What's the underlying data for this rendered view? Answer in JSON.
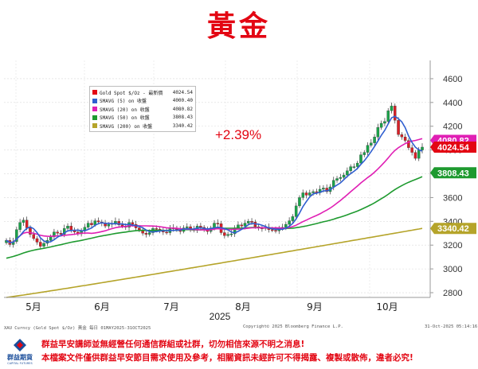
{
  "title": "黃金",
  "change_text": "+2.39%",
  "legend": [
    {
      "label": "Gold Spot $/Oz - 最新價",
      "value": "4024.54",
      "color": "#e30613"
    },
    {
      "label": "SMAVG (5)  on 收盤",
      "value": "4000.40",
      "color": "#2f5fd0"
    },
    {
      "label": "SMAVG (20)  on 收盤",
      "value": "4080.82",
      "color": "#e01fb4"
    },
    {
      "label": "SMAVG (50)  on 收盤",
      "value": "3808.43",
      "color": "#1e9a2f"
    },
    {
      "label": "SMAVG (200)  on 收盤",
      "value": "3340.42",
      "color": "#b5a42a"
    }
  ],
  "axis_badges": [
    {
      "text": "4080.82",
      "color": "#e01fb4",
      "price": 4080.82
    },
    {
      "text": "4024.54",
      "color": "#e30613",
      "price": 4024.54
    },
    {
      "text": "3808.43",
      "color": "#1e9a2f",
      "price": 3808.43
    },
    {
      "text": "3340.42",
      "color": "#b5a42a",
      "price": 3340.42
    }
  ],
  "source_left": "XAU Curncy (Gold Spot  $/Oz) 黃金 每日 01MAY2025-31OCT2025",
  "source_mid": "Copyright© 2025 Bloomberg Finance L.P.",
  "source_right": "31-Oct-2025 05:14:16",
  "logo": {
    "name": "群益期貨",
    "sub": "CAPITAL FUTURES"
  },
  "disclaimer_1": "群益早安講師並無經營任何通信群組或社群，切勿相信來源不明之消息!",
  "disclaimer_2": "本檔案文件僅供群益早安節目需求使用及參考，相關資訊未經許可不得揭露、複製或散佈，違者必究!",
  "chart_data": {
    "type": "candlestick",
    "title": "黃金",
    "xlabel": "2025",
    "ylabel": "",
    "x_tick_labels": [
      "5月",
      "6月",
      "7月",
      "8月",
      "9月",
      "10月"
    ],
    "y_ticks": [
      2800,
      3000,
      3200,
      3400,
      3600,
      3800,
      4000,
      4200,
      4400,
      4600
    ],
    "ylim": [
      2760,
      4700
    ],
    "grid": true,
    "legend_position": "top-left",
    "period": "2025-05-01 to 2025-10-31, daily",
    "close_approx": [
      3240,
      3205,
      3230,
      3330,
      3390,
      3410,
      3345,
      3290,
      3255,
      3225,
      3190,
      3215,
      3240,
      3270,
      3310,
      3300,
      3290,
      3340,
      3360,
      3325,
      3310,
      3295,
      3320,
      3350,
      3385,
      3370,
      3405,
      3395,
      3385,
      3360,
      3375,
      3385,
      3400,
      3370,
      3360,
      3350,
      3390,
      3375,
      3345,
      3325,
      3300,
      3290,
      3305,
      3340,
      3335,
      3320,
      3310,
      3305,
      3345,
      3340,
      3330,
      3315,
      3345,
      3355,
      3335,
      3325,
      3360,
      3350,
      3330,
      3315,
      3345,
      3385,
      3380,
      3305,
      3280,
      3290,
      3295,
      3345,
      3370,
      3360,
      3385,
      3400,
      3395,
      3355,
      3345,
      3340,
      3350,
      3330,
      3325,
      3320,
      3340,
      3350,
      3375,
      3405,
      3440,
      3530,
      3600,
      3640,
      3620,
      3640,
      3650,
      3640,
      3670,
      3680,
      3650,
      3690,
      3745,
      3760,
      3770,
      3790,
      3825,
      3860,
      3860,
      3890,
      3960,
      3980,
      4040,
      4060,
      4110,
      4190,
      4225,
      4240,
      4330,
      4370,
      4250,
      4130,
      4110,
      4080,
      4020,
      3980,
      3930,
      4000,
      4024.54
    ],
    "series": [
      {
        "name": "SMAVG (5)",
        "last": 4000.4
      },
      {
        "name": "SMAVG (20)",
        "last": 4080.82
      },
      {
        "name": "SMAVG (50)",
        "last": 3808.43,
        "start_approx": 3090
      },
      {
        "name": "SMAVG (200)",
        "last": 3340.42,
        "start_approx": 2760
      }
    ]
  }
}
